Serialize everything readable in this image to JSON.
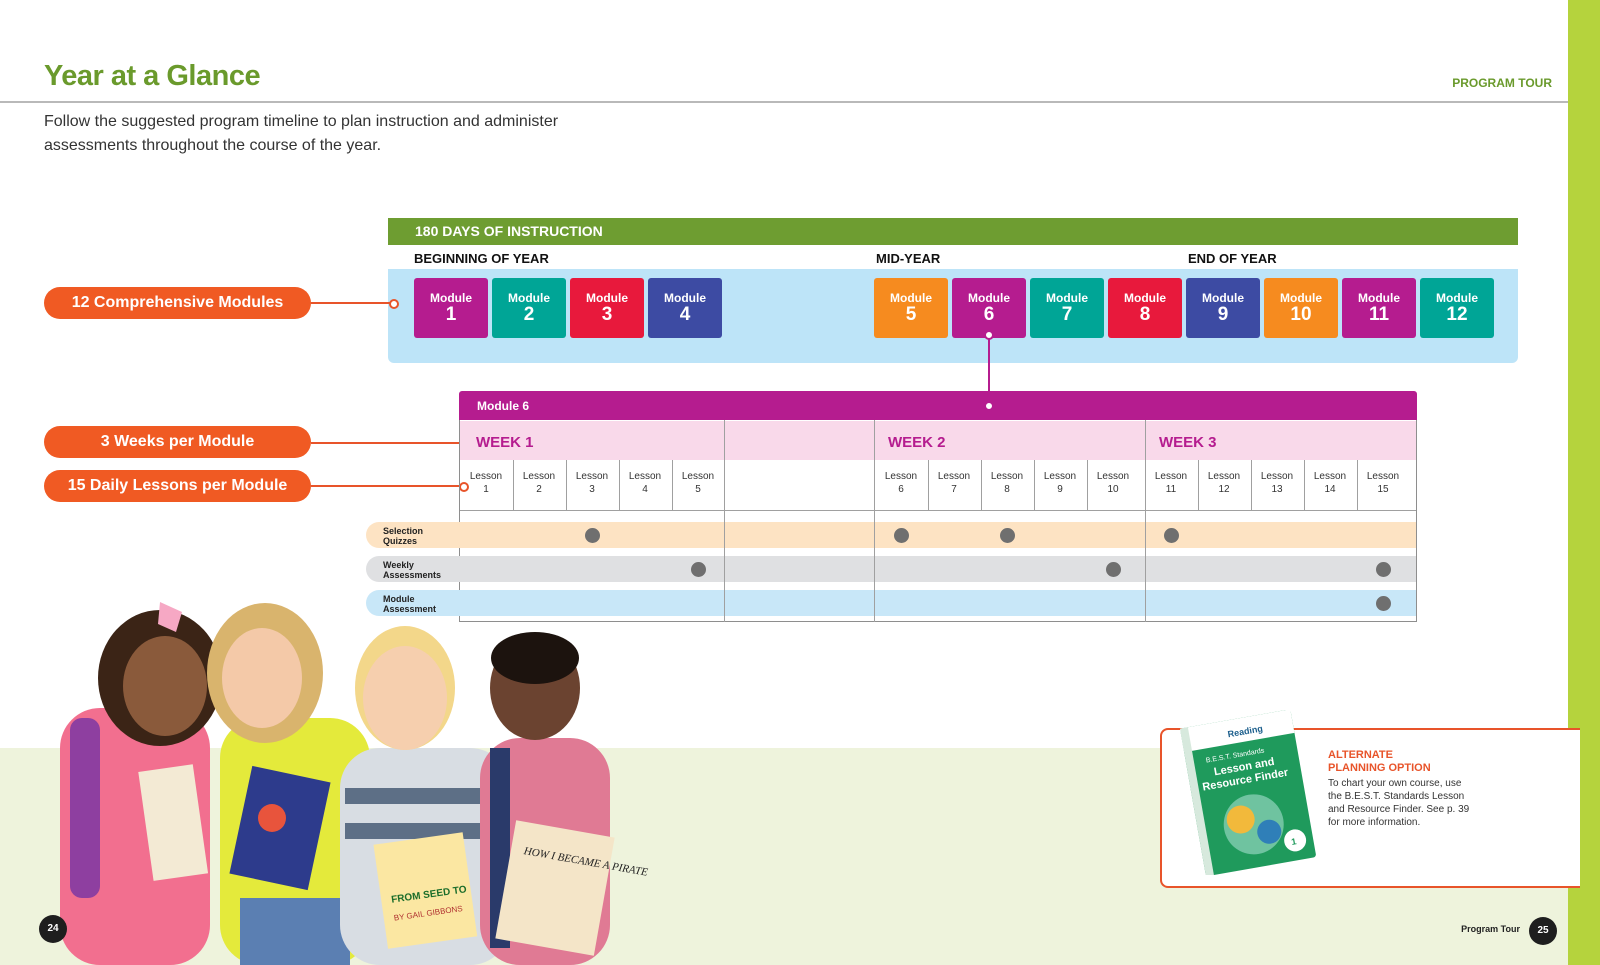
{
  "header": {
    "title": "Year at a Glance",
    "section": "PROGRAM TOUR",
    "intro": "Follow the suggested program timeline to plan instruction and administer assessments throughout the course of the year."
  },
  "timeline": {
    "days_label": "180 DAYS OF INSTRUCTION",
    "phases": [
      "BEGINNING OF YEAR",
      "MID-YEAR",
      "END OF YEAR"
    ],
    "module_word": "Module",
    "modules": [
      {
        "number": "1",
        "color": "#b51c8f"
      },
      {
        "number": "2",
        "color": "#00a596"
      },
      {
        "number": "3",
        "color": "#e8193c"
      },
      {
        "number": "4",
        "color": "#3d4ba3"
      },
      {
        "number": "5",
        "color": "#f68b1f"
      },
      {
        "number": "6",
        "color": "#b51c8f"
      },
      {
        "number": "7",
        "color": "#00a596"
      },
      {
        "number": "8",
        "color": "#e8193c"
      },
      {
        "number": "9",
        "color": "#3d4ba3"
      },
      {
        "number": "10",
        "color": "#f68b1f"
      },
      {
        "number": "11",
        "color": "#b51c8f"
      },
      {
        "number": "12",
        "color": "#00a596"
      }
    ]
  },
  "callouts": {
    "modules": "12 Comprehensive Modules",
    "weeks": "3 Weeks per Module",
    "lessons": "15 Daily Lessons per Module"
  },
  "module6": {
    "title": "Module 6",
    "weeks": [
      "WEEK 1",
      "WEEK 2",
      "WEEK 3"
    ],
    "lesson_word": "Lesson",
    "lessons": [
      "1",
      "2",
      "3",
      "4",
      "5",
      "6",
      "7",
      "8",
      "9",
      "10",
      "11",
      "12",
      "13",
      "14",
      "15"
    ],
    "assessments": [
      {
        "label_line1": "Selection",
        "label_line2": "Quizzes",
        "color": "#fde3c3",
        "lessons": [
          3,
          6,
          8,
          11
        ]
      },
      {
        "label_line1": "Weekly",
        "label_line2": "Assessments",
        "color": "#dfe0e2",
        "lessons": [
          5,
          10,
          15
        ]
      },
      {
        "label_line1": "Module",
        "label_line2": "Assessment",
        "color": "#c8e7f8",
        "lessons": [
          15
        ]
      }
    ]
  },
  "alternate": {
    "title_line1": "ALTERNATE",
    "title_line2": "PLANNING OPTION",
    "body": "To chart your own course, use the B.E.S.T. Standards Lesson and Resource Finder. See p. 39 for more information.",
    "book_title_line1": "B.E.S.T. Standards",
    "book_title_line2": "Lesson and",
    "book_title_line3": "Resource Finder",
    "book_brand": "Reading",
    "book_grade": "1"
  },
  "photo": {
    "book1": "HOW I BECAME A PIRATE",
    "book2": "FROM SEED TO",
    "book2_author": "BY GAIL GIBBONS"
  },
  "footer": {
    "left_page": "24",
    "right_page": "25",
    "label": "Program Tour"
  }
}
